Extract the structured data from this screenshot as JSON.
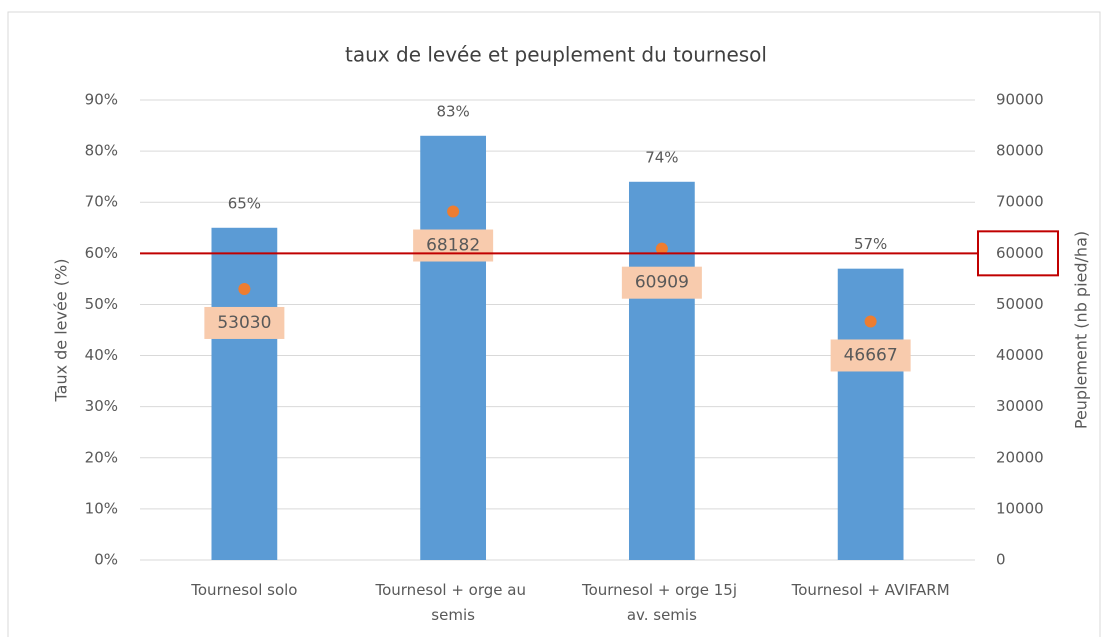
{
  "chart_data": {
    "type": "bar",
    "title": "taux de levée et peuplement du tournesol",
    "y_label": "Taux de levée (%)",
    "y2_label": "Peuplement (nb pied/ha)",
    "categories": [
      "Tournesol solo",
      "Tournesol + orge au semis",
      "Tournesol + orge 15j av. semis",
      "Tournesol + AVIFARM"
    ],
    "series": [
      {
        "type": "bar",
        "color": "#5b9bd5",
        "values": [
          65,
          83,
          74,
          57
        ],
        "value_labels": [
          "65%",
          "83%",
          "74%",
          "57%"
        ]
      },
      {
        "type": "scatter",
        "axis": "y2",
        "color": "#ed7d31",
        "label_color": "#f8cbad",
        "values": [
          53030,
          68182,
          60909,
          46667
        ]
      }
    ],
    "ylim": [
      0,
      90
    ],
    "yticks": [
      {
        "value": 0,
        "label": "0%"
      },
      {
        "value": 10,
        "label": "10%"
      },
      {
        "value": 20,
        "label": "20%"
      },
      {
        "value": 30,
        "label": "30%"
      },
      {
        "value": 40,
        "label": "40%"
      },
      {
        "value": 50,
        "label": "50%"
      },
      {
        "value": 60,
        "label": "60%"
      },
      {
        "value": 70,
        "label": "70%"
      },
      {
        "value": 80,
        "label": "80%"
      },
      {
        "value": 90,
        "label": "90%"
      }
    ],
    "y2lim": [
      0,
      90000
    ],
    "y2ticks": [
      0,
      10000,
      20000,
      30000,
      40000,
      50000,
      60000,
      70000,
      80000,
      90000
    ],
    "grid": true
  }
}
